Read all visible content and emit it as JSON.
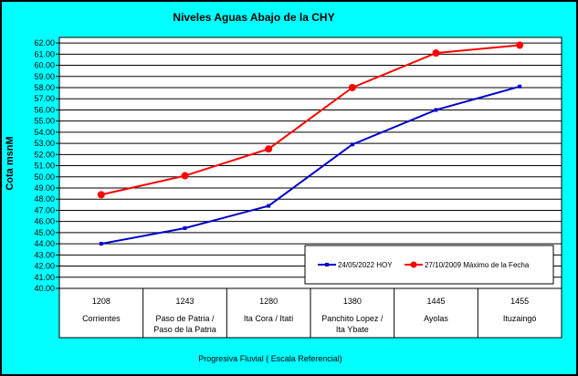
{
  "chart_data": {
    "type": "line",
    "title": "Niveles Aguas Abajo de la CHY",
    "ylabel": "Cota msnM",
    "xlabel": "Progresiva Fluvial ( Escala Referencial)",
    "ylim": [
      40.0,
      62.5
    ],
    "ytick_step": 1.0,
    "grid": true,
    "legend_position": "bottom-right",
    "categories": [
      {
        "km": "1208",
        "name": [
          "Corrientes"
        ]
      },
      {
        "km": "1243",
        "name": [
          "Paso de Patria /",
          "Paso de la Patria"
        ]
      },
      {
        "km": "1280",
        "name": [
          "Ita Cora / Itatí"
        ]
      },
      {
        "km": "1380",
        "name": [
          "Panchito Lopez /",
          "Ita Ybate"
        ]
      },
      {
        "km": "1445",
        "name": [
          "Ayolas"
        ]
      },
      {
        "km": "1455",
        "name": [
          "Ituzaingó"
        ]
      }
    ],
    "series": [
      {
        "name": "24/05/2022  HOY",
        "color": "#0000cc",
        "marker": "square",
        "values": [
          44.0,
          45.4,
          47.4,
          52.9,
          56.0,
          58.1
        ]
      },
      {
        "name": "27/10/2009  Máximo de la Fecha",
        "color": "#ff0000",
        "marker": "circle",
        "values": [
          48.4,
          50.1,
          52.5,
          58.0,
          61.1,
          61.8
        ]
      }
    ]
  }
}
